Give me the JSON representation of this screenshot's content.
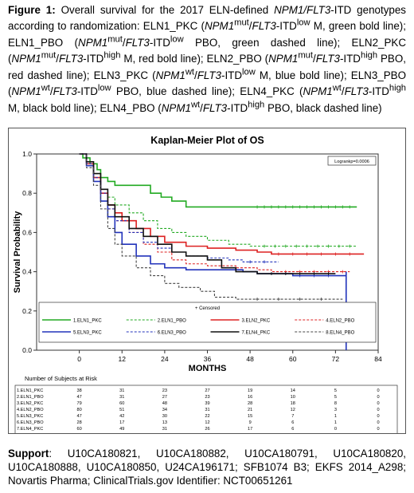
{
  "caption": {
    "label": "Figure 1:",
    "html": "Overall survival for the 2017 ELN-defined <i>NPM1/FLT3</i>-ITD genotypes according to randomization: ELN1_PKC (<i>NPM1</i><sup>mut</sup>/<i>FLT3</i>-ITD<sup>low</sup> M, green bold line); ELN1_PBO (<i>NPM1</i><sup>mut</sup>/<i>FLT3</i>-ITD<sup>low</sup> PBO, green dashed line); ELN2_PKC (<i>NPM1</i><sup>mut</sup>/<i>FLT3</i>-ITD<sup>high</sup> M, red bold line); ELN2_PBO (<i>NPM1</i><sup>mut</sup>/<i>FLT3</i>-ITD<sup>high</sup> PBO, red dashed line); ELN3_PKC (<i>NPM1</i><sup>wt</sup>/<i>FLT3</i>-ITD<sup>low</sup> M, blue bold line); ELN3_PBO (<i>NPM1</i><sup>wt</sup>/<i>FLT3</i>-ITD<sup>low</sup> PBO, blue dashed line); ELN4_PKC (<i>NPM1</i><sup>wt</sup>/<i>FLT3</i>-ITD<sup>high</sup> M, black bold line); ELN4_PBO (<i>NPM1</i><sup>wt</sup>/<i>FLT3</i>-ITD<sup>high</sup> PBO, black dashed line)"
  },
  "support": {
    "label": "Support",
    "text": ": U10CA180821, U10CA180882, U10CA180791, U10CA180820, U10CA180888, U10CA180850, U24CA196171; SFB1074 B3; EKFS 2014_A298; Novartis Pharma; ClinicalTrials.gov Identifier: NCT00651261"
  },
  "chart_data": {
    "type": "line",
    "title": "Kaplan-Meier Plot of OS",
    "xlabel": "MONTHS",
    "ylabel": "Survival Probability",
    "xlim": [
      -12,
      84
    ],
    "ylim": [
      0,
      1.0
    ],
    "xticks": [
      0,
      12,
      24,
      36,
      48,
      60,
      72,
      84
    ],
    "yticks": [
      0.0,
      0.2,
      0.4,
      0.6,
      0.8,
      1.0
    ],
    "test_label": "Logrankp=0.0006",
    "censored_label": "+ Censored",
    "risk_title": "Number of Subjects at Risk",
    "series": [
      {
        "name": "1.ELN1_PKC",
        "color": "#22aa22",
        "dash": false,
        "points": [
          [
            0,
            1.0
          ],
          [
            1,
            0.98
          ],
          [
            3,
            0.95
          ],
          [
            5,
            0.92
          ],
          [
            6,
            0.88
          ],
          [
            8,
            0.86
          ],
          [
            10,
            0.84
          ],
          [
            18,
            0.84
          ],
          [
            20,
            0.8
          ],
          [
            23,
            0.78
          ],
          [
            26,
            0.76
          ],
          [
            30,
            0.73
          ],
          [
            78,
            0.73
          ]
        ],
        "censor": [
          50,
          52,
          54,
          56,
          58,
          60,
          62,
          64,
          66,
          68,
          70,
          72,
          74,
          76
        ],
        "risk": [
          38,
          31,
          23,
          27,
          19,
          14,
          5,
          0
        ]
      },
      {
        "name": "2.ELN1_PBO",
        "color": "#22aa22",
        "dash": true,
        "points": [
          [
            0,
            1.0
          ],
          [
            2,
            0.96
          ],
          [
            4,
            0.9
          ],
          [
            6,
            0.82
          ],
          [
            8,
            0.78
          ],
          [
            10,
            0.74
          ],
          [
            14,
            0.7
          ],
          [
            18,
            0.66
          ],
          [
            22,
            0.62
          ],
          [
            26,
            0.6
          ],
          [
            30,
            0.58
          ],
          [
            36,
            0.56
          ],
          [
            42,
            0.54
          ],
          [
            48,
            0.53
          ],
          [
            78,
            0.53
          ]
        ],
        "censor": [
          52,
          55,
          58,
          61,
          64,
          67,
          70,
          73,
          76
        ],
        "risk": [
          47,
          31,
          27,
          23,
          16,
          10,
          5,
          0
        ]
      },
      {
        "name": "3.ELN2_PKC",
        "color": "#dd2222",
        "dash": false,
        "points": [
          [
            0,
            1.0
          ],
          [
            2,
            0.95
          ],
          [
            4,
            0.88
          ],
          [
            6,
            0.8
          ],
          [
            8,
            0.74
          ],
          [
            10,
            0.7
          ],
          [
            12,
            0.66
          ],
          [
            16,
            0.62
          ],
          [
            20,
            0.58
          ],
          [
            24,
            0.55
          ],
          [
            30,
            0.53
          ],
          [
            36,
            0.52
          ],
          [
            44,
            0.51
          ],
          [
            50,
            0.5
          ],
          [
            54,
            0.49
          ],
          [
            80,
            0.49
          ]
        ],
        "censor": [
          56,
          60,
          64,
          68,
          72,
          76
        ],
        "risk": [
          79,
          60,
          48,
          39,
          28,
          18,
          8,
          0
        ]
      },
      {
        "name": "4.ELN2_PBO",
        "color": "#dd2222",
        "dash": true,
        "points": [
          [
            0,
            1.0
          ],
          [
            2,
            0.95
          ],
          [
            4,
            0.88
          ],
          [
            6,
            0.8
          ],
          [
            8,
            0.72
          ],
          [
            10,
            0.66
          ],
          [
            14,
            0.6
          ],
          [
            18,
            0.54
          ],
          [
            22,
            0.5
          ],
          [
            26,
            0.46
          ],
          [
            30,
            0.44
          ],
          [
            36,
            0.43
          ],
          [
            44,
            0.42
          ],
          [
            50,
            0.41
          ],
          [
            54,
            0.4
          ],
          [
            76,
            0.4
          ]
        ],
        "censor": [
          58,
          62,
          66,
          70,
          74
        ],
        "risk": [
          80,
          51,
          34,
          31,
          21,
          12,
          3,
          0
        ]
      },
      {
        "name": "5.ELN3_PKC",
        "color": "#2233bb",
        "dash": false,
        "points": [
          [
            0,
            1.0
          ],
          [
            2,
            0.94
          ],
          [
            4,
            0.86
          ],
          [
            6,
            0.76
          ],
          [
            8,
            0.68
          ],
          [
            10,
            0.6
          ],
          [
            12,
            0.54
          ],
          [
            16,
            0.48
          ],
          [
            20,
            0.44
          ],
          [
            24,
            0.42
          ],
          [
            30,
            0.41
          ],
          [
            36,
            0.41
          ],
          [
            46,
            0.4
          ],
          [
            50,
            0.39
          ],
          [
            60,
            0.38
          ],
          [
            72,
            0.38
          ],
          [
            75,
            0.4
          ],
          [
            75,
            0.0
          ]
        ],
        "censor": [
          54,
          58,
          62,
          66,
          70
        ],
        "risk": [
          47,
          42,
          30,
          22,
          15,
          7,
          1,
          0
        ]
      },
      {
        "name": "6.ELN3_PBO",
        "color": "#2233bb",
        "dash": true,
        "points": [
          [
            0,
            1.0
          ],
          [
            2,
            0.95
          ],
          [
            4,
            0.88
          ],
          [
            6,
            0.8
          ],
          [
            8,
            0.72
          ],
          [
            10,
            0.66
          ],
          [
            14,
            0.6
          ],
          [
            18,
            0.55
          ],
          [
            22,
            0.52
          ],
          [
            26,
            0.5
          ],
          [
            30,
            0.48
          ],
          [
            36,
            0.47
          ],
          [
            42,
            0.46
          ],
          [
            46,
            0.45
          ],
          [
            56,
            0.45
          ]
        ],
        "censor": [
          48,
          52
        ],
        "risk": [
          28,
          17,
          13,
          12,
          9,
          6,
          1,
          0
        ]
      },
      {
        "name": "7.ELN4_PKC",
        "color": "#111111",
        "dash": false,
        "points": [
          [
            0,
            1.0
          ],
          [
            2,
            0.96
          ],
          [
            4,
            0.9
          ],
          [
            6,
            0.82
          ],
          [
            8,
            0.74
          ],
          [
            10,
            0.68
          ],
          [
            14,
            0.62
          ],
          [
            18,
            0.58
          ],
          [
            22,
            0.54
          ],
          [
            26,
            0.5
          ],
          [
            30,
            0.48
          ],
          [
            36,
            0.46
          ],
          [
            40,
            0.42
          ],
          [
            44,
            0.4
          ],
          [
            50,
            0.39
          ],
          [
            72,
            0.39
          ]
        ],
        "censor": [
          54,
          58,
          62,
          66,
          70
        ],
        "risk": [
          60,
          49,
          31,
          26,
          17,
          6,
          0,
          0
        ]
      },
      {
        "name": "8.ELN4_PBO",
        "color": "#444444",
        "dash": true,
        "points": [
          [
            0,
            1.0
          ],
          [
            2,
            0.93
          ],
          [
            4,
            0.84
          ],
          [
            6,
            0.72
          ],
          [
            8,
            0.62
          ],
          [
            10,
            0.54
          ],
          [
            12,
            0.48
          ],
          [
            16,
            0.42
          ],
          [
            20,
            0.38
          ],
          [
            24,
            0.34
          ],
          [
            28,
            0.32
          ],
          [
            34,
            0.3
          ],
          [
            38,
            0.27
          ],
          [
            44,
            0.26
          ],
          [
            74,
            0.26
          ]
        ],
        "censor": [
          50,
          56,
          62,
          68
        ],
        "risk": [
          49,
          26,
          14,
          12,
          8,
          4,
          1,
          0
        ]
      }
    ]
  }
}
